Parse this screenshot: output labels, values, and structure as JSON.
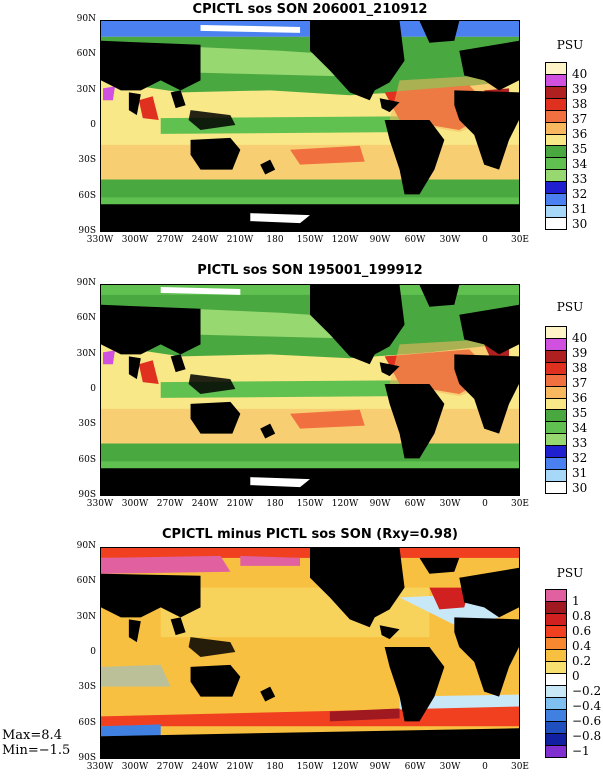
{
  "panels": [
    {
      "title": "CPICTL sos SON 206001_210912",
      "units": "PSU",
      "colorbar": {
        "labels": [
          "40",
          "39",
          "38",
          "37",
          "36",
          "35",
          "34",
          "33",
          "32",
          "31",
          "30"
        ],
        "colors": [
          "#fff3c8",
          "#d050e0",
          "#b02020",
          "#e03020",
          "#f07040",
          "#f8b860",
          "#f8e888",
          "#4aa840",
          "#60c050",
          "#98d870",
          "#2020d0",
          "#4a80f0",
          "#a8d8f8",
          "#ffffff"
        ]
      }
    },
    {
      "title": "PICTL sos SON 195001_199912",
      "units": "PSU",
      "colorbar": {
        "labels": [
          "40",
          "39",
          "38",
          "37",
          "36",
          "35",
          "34",
          "33",
          "32",
          "31",
          "30"
        ],
        "colors": [
          "#fff3c8",
          "#d050e0",
          "#b02020",
          "#e03020",
          "#f07040",
          "#f8b860",
          "#f8e888",
          "#4aa840",
          "#60c050",
          "#98d870",
          "#2020d0",
          "#4a80f0",
          "#a8d8f8",
          "#ffffff"
        ]
      }
    },
    {
      "title": "CPICTL minus PICTL sos SON (Rxy=0.98)",
      "units": "PSU",
      "colorbar": {
        "labels": [
          "1",
          "0.8",
          "0.6",
          "0.4",
          "0.2",
          "0",
          "−0.2",
          "−0.4",
          "−0.6",
          "−0.8",
          "−1"
        ],
        "colors": [
          "#e060a0",
          "#a01820",
          "#d02020",
          "#f04020",
          "#f88830",
          "#f8c040",
          "#f8e070",
          "#ffffff",
          "#c8e8f8",
          "#80c0f0",
          "#4080e0",
          "#2050c0",
          "#1020a0",
          "#8030d0"
        ]
      },
      "stats": {
        "max": "Max=8.4",
        "min": "Min=−1.5"
      }
    }
  ],
  "axes": {
    "lat_labels": [
      "90N",
      "60N",
      "30N",
      "0",
      "30S",
      "60S",
      "90S"
    ],
    "lon_labels": [
      "330W",
      "300W",
      "270W",
      "240W",
      "210W",
      "180",
      "150W",
      "120W",
      "90W",
      "60W",
      "30W",
      "0",
      "30E"
    ]
  },
  "map_colors": {
    "land": "#000000",
    "ocean_low": "#4aa840",
    "ocean_mid": "#f8e888",
    "ocean_high": "#e03020",
    "ice": "#ffffff",
    "arctic": "#4a80f0",
    "diff_base": "#f8c040",
    "diff_pos": "#f04020",
    "diff_pink": "#e060a0",
    "diff_neg": "#80c0f0"
  }
}
